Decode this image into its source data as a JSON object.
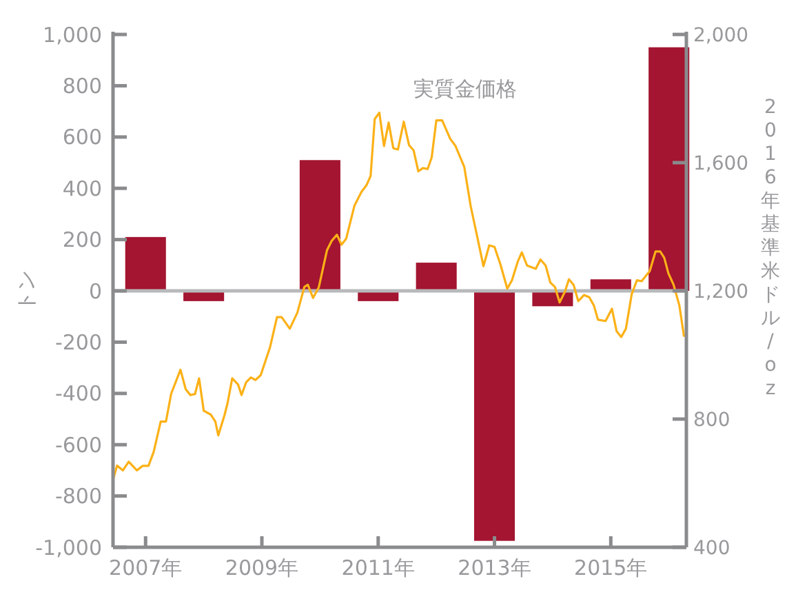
{
  "chart_data": {
    "type": "bar",
    "ylabel": "トン",
    "y2label": "2016年基準米ドル/oz",
    "x": [
      2007,
      2008,
      2009,
      2010,
      2011,
      2012,
      2013,
      2014,
      2015,
      2016
    ],
    "xlim": [
      2006.44,
      2016.3
    ],
    "xticks": [
      {
        "value": 2007,
        "label": "2007年"
      },
      {
        "value": 2009,
        "label": "2009年"
      },
      {
        "value": 2011,
        "label": "2011年"
      },
      {
        "value": 2013,
        "label": "2013年"
      },
      {
        "value": 2015,
        "label": "2015年"
      }
    ],
    "ylim": [
      -1000,
      1000
    ],
    "yticks": [
      {
        "value": -1000,
        "label": "-1,000"
      },
      -800,
      -600,
      -400,
      -200,
      0,
      200,
      400,
      600,
      800,
      {
        "value": 1000,
        "label": "1,000"
      }
    ],
    "y2lim": [
      400,
      2000
    ],
    "y2ticks": [
      400,
      800,
      {
        "value": 1200,
        "label": "1,200"
      },
      {
        "value": 1600,
        "label": "1,600"
      },
      {
        "value": 2000,
        "label": "2,000"
      }
    ],
    "series": [
      {
        "color": "#a31530",
        "values": [
          210,
          -40,
          null,
          510,
          -40,
          110,
          -975,
          -60,
          45,
          950
        ]
      },
      {
        "type": "line",
        "name": "実質金価格",
        "color": "#fbb117",
        "axis": "y2",
        "x": [
          2006.44,
          2006.51,
          2006.61,
          2006.71,
          2006.85,
          2006.95,
          2007.05,
          2007.14,
          2007.26,
          2007.35,
          2007.44,
          2007.6,
          2007.69,
          2007.77,
          2007.85,
          2007.92,
          2008.0,
          2008.12,
          2008.2,
          2008.25,
          2008.36,
          2008.41,
          2008.49,
          2008.59,
          2008.65,
          2008.73,
          2008.81,
          2008.89,
          2008.98,
          2009.14,
          2009.26,
          2009.34,
          2009.48,
          2009.61,
          2009.73,
          2009.79,
          2009.88,
          2009.98,
          2010.12,
          2010.2,
          2010.29,
          2010.37,
          2010.45,
          2010.59,
          2010.71,
          2010.8,
          2010.87,
          2010.94,
          2011.02,
          2011.1,
          2011.18,
          2011.26,
          2011.34,
          2011.44,
          2011.53,
          2011.61,
          2011.69,
          2011.77,
          2011.85,
          2011.92,
          2012.0,
          2012.1,
          2012.24,
          2012.33,
          2012.48,
          2012.59,
          2012.71,
          2012.81,
          2012.91,
          2013.0,
          2013.1,
          2013.22,
          2013.3,
          2013.4,
          2013.47,
          2013.56,
          2013.71,
          2013.79,
          2013.88,
          2013.96,
          2014.04,
          2014.12,
          2014.21,
          2014.28,
          2014.36,
          2014.44,
          2014.54,
          2014.63,
          2014.71,
          2014.78,
          2014.91,
          2015.02,
          2015.1,
          2015.18,
          2015.26,
          2015.36,
          2015.45,
          2015.53,
          2015.67,
          2015.77,
          2015.85,
          2015.92,
          2015.99,
          2016.08,
          2016.18,
          2016.26
        ],
        "values": [
          610,
          655,
          640,
          667,
          640,
          654,
          654,
          698,
          792,
          792,
          879,
          954,
          893,
          875,
          878,
          927,
          826,
          814,
          792,
          749,
          814,
          850,
          927,
          908,
          875,
          915,
          930,
          922,
          937,
          1024,
          1118,
          1118,
          1082,
          1132,
          1212,
          1219,
          1178,
          1212,
          1327,
          1356,
          1375,
          1344,
          1363,
          1465,
          1508,
          1530,
          1559,
          1736,
          1756,
          1652,
          1725,
          1645,
          1641,
          1728,
          1655,
          1638,
          1573,
          1583,
          1580,
          1616,
          1732,
          1732,
          1674,
          1652,
          1587,
          1465,
          1363,
          1277,
          1342,
          1337,
          1284,
          1207,
          1233,
          1291,
          1320,
          1279,
          1269,
          1298,
          1279,
          1226,
          1212,
          1164,
          1197,
          1236,
          1219,
          1168,
          1187,
          1180,
          1154,
          1110,
          1106,
          1144,
          1074,
          1056,
          1082,
          1190,
          1233,
          1230,
          1262,
          1323,
          1323,
          1303,
          1255,
          1219,
          1154,
          1057
        ]
      }
    ]
  }
}
